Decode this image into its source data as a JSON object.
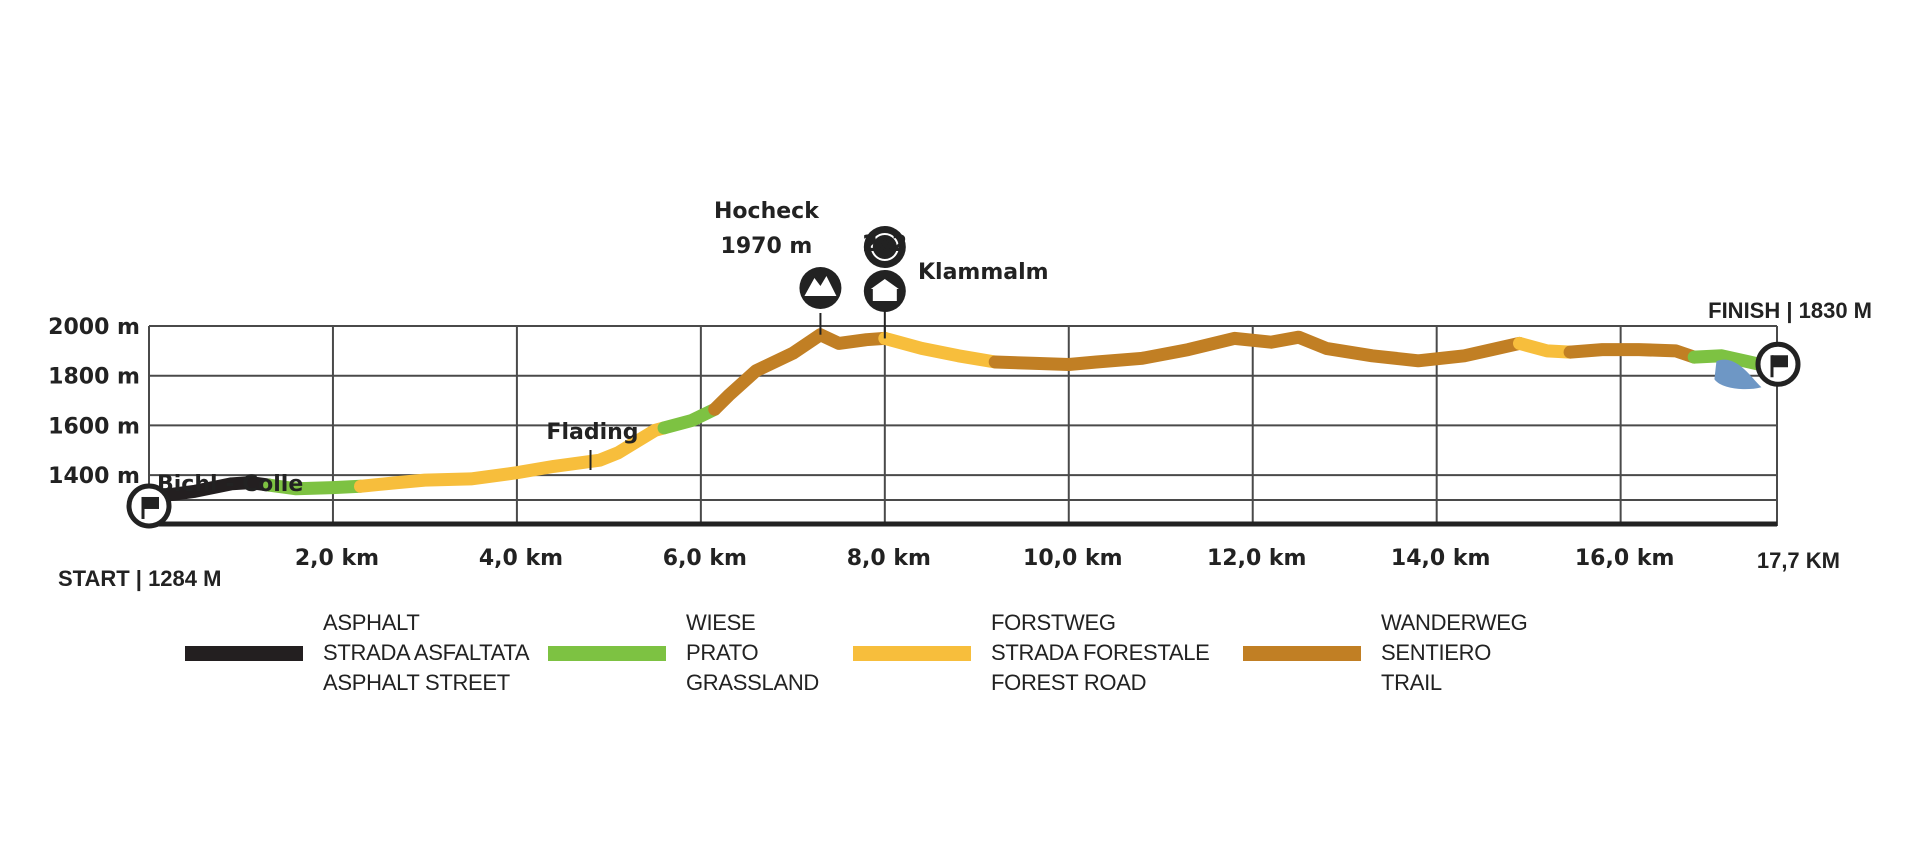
{
  "chart_data": {
    "type": "line",
    "ylabel_ticks": [
      "1400 m",
      "1600 m",
      "1800 m",
      "2000 m"
    ],
    "ylim": [
      1270,
      2030
    ],
    "xlim": [
      0,
      17.7
    ],
    "y_ticks": [
      1400,
      1600,
      1800,
      2000
    ],
    "x_ticks": [
      {
        "x": 2,
        "label": "2,0  km"
      },
      {
        "x": 4,
        "label": "4,0  km"
      },
      {
        "x": 6,
        "label": "6,0  km"
      },
      {
        "x": 8,
        "label": "8,0  km"
      },
      {
        "x": 10,
        "label": "10,0  km"
      },
      {
        "x": 12,
        "label": "12,0  km"
      },
      {
        "x": 14,
        "label": "14,0  km"
      },
      {
        "x": 16,
        "label": "16,0  km"
      }
    ],
    "x_end_label": "17,7  KM",
    "grid": true,
    "start_label": "START | 1284 M",
    "finish_label": "FINISH | 1830 M",
    "colors": {
      "asphalt": "#231f20",
      "grassland": "#7dc242",
      "forest_road": "#f7be3c",
      "trail": "#c17f24",
      "water": "#6e97c5",
      "grid": "#4a4a4a"
    },
    "segments": [
      {
        "surface": "asphalt",
        "points": [
          [
            0,
            1284
          ],
          [
            0.2,
            1320
          ],
          [
            0.5,
            1335
          ],
          [
            0.9,
            1365
          ],
          [
            1.1,
            1370
          ],
          [
            1.3,
            1360
          ]
        ]
      },
      {
        "surface": "grassland",
        "points": [
          [
            1.3,
            1360
          ],
          [
            1.6,
            1345
          ],
          [
            2.0,
            1350
          ],
          [
            2.3,
            1355
          ]
        ]
      },
      {
        "surface": "forest_road",
        "points": [
          [
            2.3,
            1355
          ],
          [
            2.7,
            1370
          ],
          [
            3.0,
            1380
          ],
          [
            3.5,
            1385
          ],
          [
            4.0,
            1410
          ],
          [
            4.4,
            1435
          ],
          [
            4.9,
            1460
          ],
          [
            5.1,
            1490
          ],
          [
            5.5,
            1580
          ],
          [
            5.6,
            1590
          ]
        ]
      },
      {
        "surface": "grassland",
        "points": [
          [
            5.6,
            1590
          ],
          [
            5.9,
            1620
          ],
          [
            6.15,
            1665
          ]
        ]
      },
      {
        "surface": "trail",
        "points": [
          [
            6.15,
            1665
          ],
          [
            6.3,
            1720
          ],
          [
            6.6,
            1820
          ],
          [
            7.0,
            1890
          ],
          [
            7.3,
            1965
          ],
          [
            7.5,
            1930
          ],
          [
            7.8,
            1945
          ],
          [
            8.0,
            1950
          ]
        ]
      },
      {
        "surface": "forest_road",
        "points": [
          [
            8.0,
            1950
          ],
          [
            8.4,
            1910
          ],
          [
            8.8,
            1880
          ],
          [
            9.2,
            1855
          ]
        ]
      },
      {
        "surface": "trail",
        "points": [
          [
            9.2,
            1855
          ],
          [
            9.6,
            1850
          ],
          [
            10.0,
            1845
          ],
          [
            10.3,
            1855
          ],
          [
            10.8,
            1870
          ],
          [
            11.3,
            1905
          ],
          [
            11.8,
            1950
          ],
          [
            12.2,
            1935
          ],
          [
            12.5,
            1955
          ],
          [
            12.8,
            1910
          ],
          [
            13.3,
            1880
          ],
          [
            13.8,
            1860
          ],
          [
            14.3,
            1880
          ],
          [
            14.6,
            1905
          ],
          [
            14.9,
            1930
          ]
        ]
      },
      {
        "surface": "forest_road",
        "points": [
          [
            14.9,
            1930
          ],
          [
            15.2,
            1900
          ],
          [
            15.45,
            1895
          ]
        ]
      },
      {
        "surface": "trail",
        "points": [
          [
            15.45,
            1895
          ],
          [
            15.8,
            1905
          ],
          [
            16.2,
            1905
          ],
          [
            16.6,
            1900
          ],
          [
            16.8,
            1875
          ]
        ]
      },
      {
        "surface": "grassland",
        "points": [
          [
            16.8,
            1875
          ],
          [
            17.1,
            1880
          ],
          [
            17.4,
            1855
          ],
          [
            17.7,
            1830
          ]
        ]
      }
    ],
    "annotations": [
      {
        "km": 0.95,
        "elev": 1390,
        "text": "Bichl - Colle",
        "marker": false
      },
      {
        "km": 4.8,
        "elev": 1600,
        "text": "Flading",
        "marker": true
      },
      {
        "km": 7.3,
        "elev": 1965,
        "text": "Hocheck",
        "text2": "1970 m",
        "marker": true
      },
      {
        "km": 8.0,
        "elev": 1950,
        "text": "Klammalm",
        "marker": true
      }
    ],
    "legend": [
      {
        "surface": "asphalt",
        "lines": [
          "ASPHALT",
          "STRADA ASFALTATA",
          "ASPHALT STREET"
        ]
      },
      {
        "surface": "grassland",
        "lines": [
          "WIESE",
          "PRATO",
          "GRASSLAND"
        ]
      },
      {
        "surface": "forest_road",
        "lines": [
          "FORSTWEG",
          "STRADA FORESTALE",
          "FOREST ROAD"
        ]
      },
      {
        "surface": "trail",
        "lines": [
          "WANDERWEG",
          "SENTIERO",
          "TRAIL"
        ]
      }
    ],
    "icons": [
      "start-flag-icon",
      "finish-flag-icon",
      "summit-icon",
      "hut-icon",
      "bike-2x2-icon",
      "lake-icon"
    ],
    "icon_text": "2x2"
  }
}
